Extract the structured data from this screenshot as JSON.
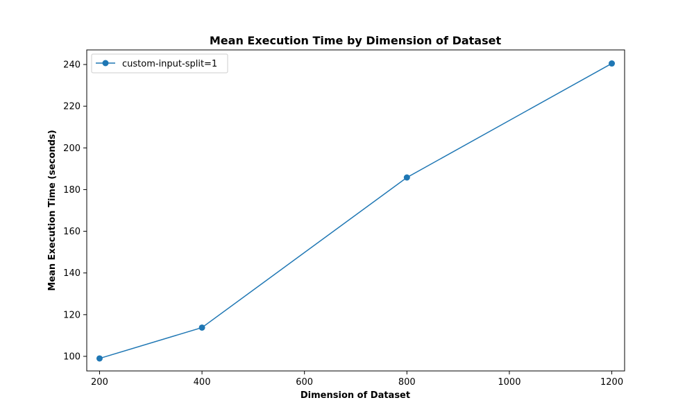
{
  "chart_data": {
    "type": "line",
    "title": "Mean Execution Time by Dimension of Dataset",
    "xlabel": "Dimension of Dataset",
    "ylabel": "Mean Execution Time (seconds)",
    "xlim": [
      175,
      1225
    ],
    "ylim": [
      93,
      247
    ],
    "xticks": [
      200,
      400,
      600,
      800,
      1000,
      1200
    ],
    "yticks": [
      100,
      120,
      140,
      160,
      180,
      200,
      220,
      240
    ],
    "grid": false,
    "legend_position": "top-left",
    "series": [
      {
        "name": "custom-input-split=1",
        "color": "#1f77b4",
        "marker": "circle",
        "x": [
          200,
          400,
          800,
          1200
        ],
        "y": [
          99.0,
          113.8,
          185.8,
          240.5
        ]
      }
    ]
  }
}
